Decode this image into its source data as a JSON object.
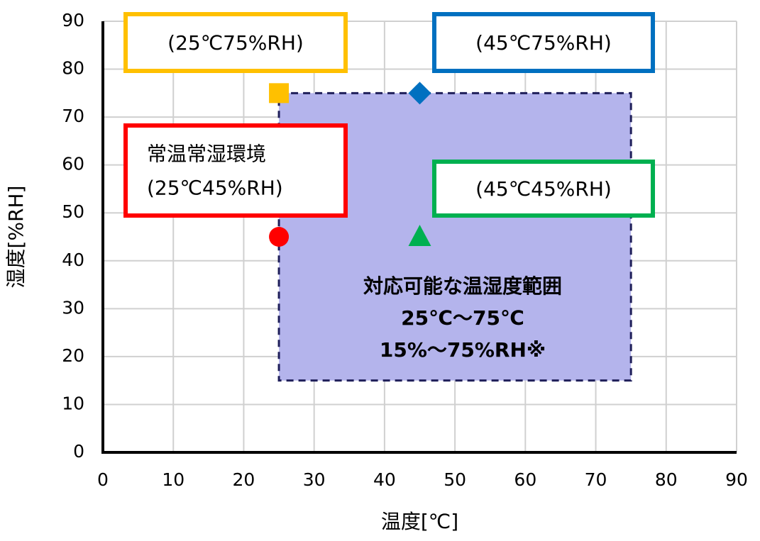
{
  "chart_data": {
    "type": "scatter",
    "x_label": "温度[℃]",
    "y_label": "湿度[%RH]",
    "xlim": [
      0,
      90
    ],
    "ylim": [
      0,
      90
    ],
    "xticks": [
      0,
      10,
      20,
      30,
      40,
      50,
      60,
      70,
      80,
      90
    ],
    "yticks": [
      0,
      10,
      20,
      30,
      40,
      50,
      60,
      70,
      80,
      90
    ],
    "grid": true,
    "region": {
      "xlim": [
        25,
        75
      ],
      "ylim": [
        15,
        75
      ],
      "color": "#b4b4ec",
      "border_color": "#1f1f5a",
      "lines": [
        "対応可能な温湿度範囲",
        "25℃～75℃",
        "15%～75%RH※"
      ]
    },
    "series": [
      {
        "marker": "square",
        "color": "#ffc000",
        "x": [
          25
        ],
        "values": [
          75
        ]
      },
      {
        "marker": "diamond",
        "color": "#0070c0",
        "x": [
          45
        ],
        "values": [
          75
        ]
      },
      {
        "marker": "circle",
        "color": "#ff0000",
        "x": [
          25
        ],
        "values": [
          45
        ]
      },
      {
        "marker": "triangle",
        "color": "#00b050",
        "x": [
          45
        ],
        "values": [
          45
        ]
      }
    ],
    "annotations": [
      {
        "color": "#ffc000",
        "lines": [
          "(25℃75%RH)"
        ]
      },
      {
        "color": "#0070c0",
        "lines": [
          "(45℃75%RH)"
        ]
      },
      {
        "color": "#ff0000",
        "lines": [
          "常温常湿環境",
          "(25℃45%RH)"
        ]
      },
      {
        "color": "#00b050",
        "lines": [
          "(45℃45%RH)"
        ]
      }
    ]
  }
}
